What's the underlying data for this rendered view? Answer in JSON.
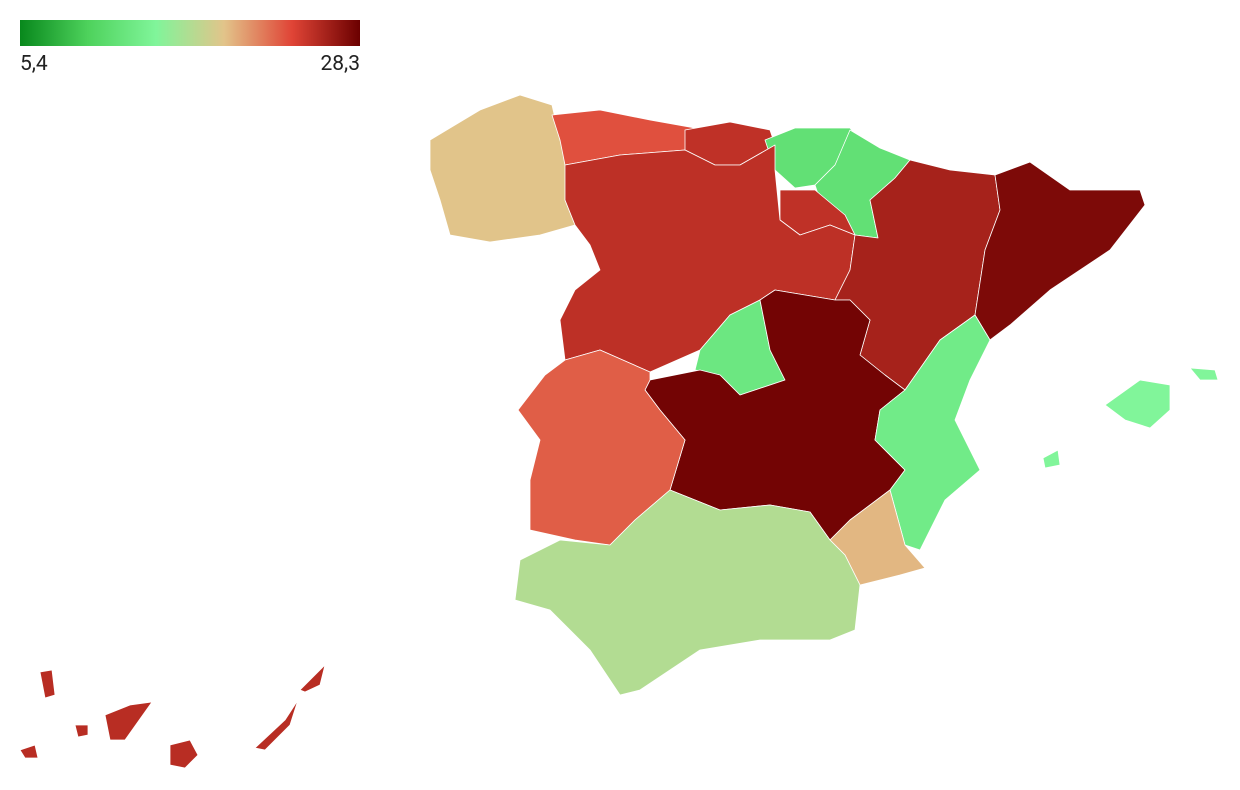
{
  "chart_data": {
    "type": "choropleth",
    "colors": [
      "#08881c",
      "#4ed25c",
      "#80f59a",
      "#e2c48a",
      "#e04436",
      "#6b0000"
    ],
    "zlim": [
      5.4,
      28.3
    ],
    "zticks": [
      {
        "value": 5.4,
        "label": "5,4"
      },
      {
        "value": 28.3,
        "label": "28,3"
      }
    ],
    "values": [
      19.1,
      23.3,
      25.0,
      11.8,
      11.8,
      25.0,
      25.1,
      26.0,
      27.6,
      12.7,
      28.0,
      22.8,
      13.2,
      14.6,
      19.6,
      16.9,
      25.3
    ]
  }
}
